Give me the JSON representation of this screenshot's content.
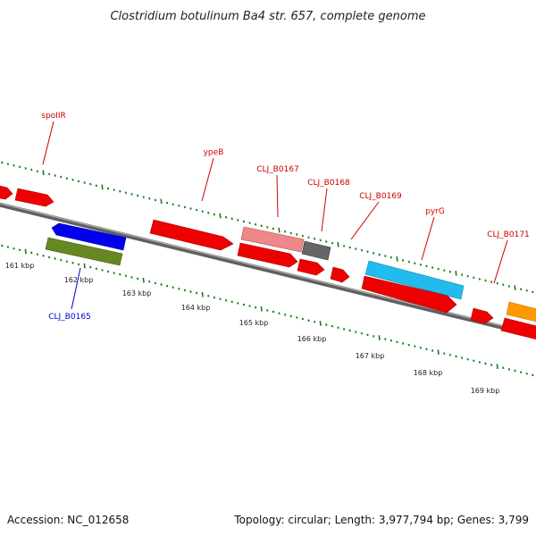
{
  "title": "Clostridium botulinum Ba4 str. 657, complete genome",
  "footer": {
    "accession": "Accession: NC_012658",
    "summary": "Topology: circular; Length: 3,977,794 bp; Genes: 3,799"
  },
  "colors": {
    "backbone": "#808080",
    "tick": "#1a7a1a",
    "label_forward": "#cc0000",
    "label_reverse": "#0000cc"
  },
  "scale_ticks": [
    {
      "label": "161 kbp"
    },
    {
      "label": "162 kbp"
    },
    {
      "label": "163 kbp"
    },
    {
      "label": "164 kbp"
    },
    {
      "label": "165 kbp"
    },
    {
      "label": "166 kbp"
    },
    {
      "label": "167 kbp"
    },
    {
      "label": "168 kbp"
    },
    {
      "label": "169 kbp"
    }
  ],
  "gene_labels": [
    {
      "text": "spoIIR",
      "color": "#cc0000"
    },
    {
      "text": "ypeB",
      "color": "#cc0000"
    },
    {
      "text": "CLJ_B0167",
      "color": "#cc0000"
    },
    {
      "text": "CLJ_B0168",
      "color": "#cc0000"
    },
    {
      "text": "CLJ_B0169",
      "color": "#cc0000"
    },
    {
      "text": "pyrG",
      "color": "#cc0000"
    },
    {
      "text": "CLJ_B0171",
      "color": "#cc0000"
    },
    {
      "text": "CLJ_B0165",
      "color": "#0000cc"
    }
  ],
  "features": [
    {
      "name": "feature-red-left-edge",
      "color": "#ee0000"
    },
    {
      "name": "feature-spoIIR",
      "color": "#ee0000"
    },
    {
      "name": "feature-ypeB",
      "color": "#ee0000"
    },
    {
      "name": "feature-CLJ_B0167",
      "color": "#ee8888"
    },
    {
      "name": "feature-CLJ_B0168",
      "color": "#666666"
    },
    {
      "name": "feature-pyrG",
      "color": "#22bbee"
    },
    {
      "name": "feature-orange",
      "color": "#ff9900"
    },
    {
      "name": "feature-CLJ_B0165",
      "color": "#0000ee"
    },
    {
      "name": "feature-green",
      "color": "#668822"
    },
    {
      "name": "feature-cds-164",
      "color": "#ee0000"
    },
    {
      "name": "feature-cds-165",
      "color": "#ee0000"
    },
    {
      "name": "feature-cds-166",
      "color": "#ee0000"
    },
    {
      "name": "feature-cds-167",
      "color": "#ee0000"
    },
    {
      "name": "feature-cds-168",
      "color": "#ee0000"
    },
    {
      "name": "feature-cds-169",
      "color": "#ee0000"
    }
  ]
}
